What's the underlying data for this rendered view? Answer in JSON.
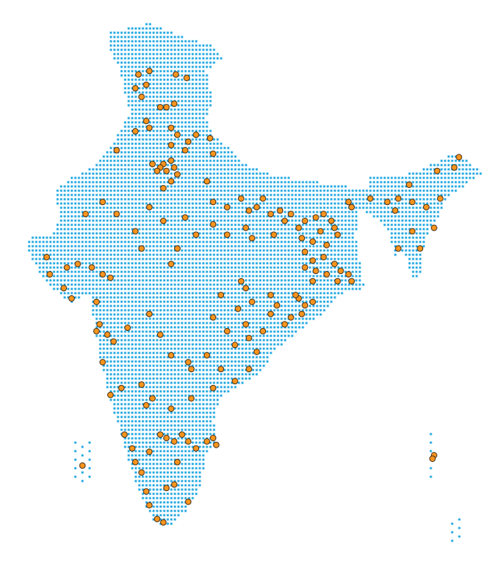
{
  "map": {
    "region": "India",
    "background_dot_color": "#1ea7e1",
    "point_fill_color": "#f7941d",
    "point_stroke_color": "#3a2a1a",
    "points_lonlat": [
      [
        75.4,
        34.1
      ],
      [
        75.9,
        33.5
      ],
      [
        75.2,
        33.3
      ],
      [
        75.6,
        32.8
      ],
      [
        76.1,
        34.3
      ],
      [
        77.8,
        34.1
      ],
      [
        78.5,
        33.9
      ],
      [
        76.8,
        32.2
      ],
      [
        77.2,
        32.2
      ],
      [
        77.7,
        32.4
      ],
      [
        75.9,
        31.4
      ],
      [
        76.1,
        31.0
      ],
      [
        75.2,
        30.8
      ],
      [
        77.5,
        31.0
      ],
      [
        77.9,
        30.6
      ],
      [
        78.6,
        30.2
      ],
      [
        79.1,
        30.6
      ],
      [
        77.5,
        30.0
      ],
      [
        78.4,
        29.7
      ],
      [
        80.0,
        30.4
      ],
      [
        80.2,
        29.5
      ],
      [
        74.0,
        29.7
      ],
      [
        77.0,
        28.9
      ],
      [
        77.5,
        29.1
      ],
      [
        77.2,
        28.5
      ],
      [
        77.7,
        28.7
      ],
      [
        76.8,
        28.7
      ],
      [
        77.5,
        27.9
      ],
      [
        77.9,
        28.3
      ],
      [
        77.0,
        27.5
      ],
      [
        76.6,
        28.5
      ],
      [
        76.3,
        28.9
      ],
      [
        79.8,
        27.9
      ],
      [
        80.2,
        26.7
      ],
      [
        81.1,
        26.4
      ],
      [
        82.0,
        26.9
      ],
      [
        82.5,
        26.2
      ],
      [
        83.0,
        26.4
      ],
      [
        83.9,
        26.0
      ],
      [
        84.5,
        26.2
      ],
      [
        85.2,
        26.0
      ],
      [
        83.4,
        26.9
      ],
      [
        80.2,
        25.4
      ],
      [
        81.1,
        24.8
      ],
      [
        82.3,
        25.2
      ],
      [
        82.7,
        24.6
      ],
      [
        84.1,
        24.8
      ],
      [
        84.8,
        25.6
      ],
      [
        85.7,
        25.2
      ],
      [
        86.1,
        25.6
      ],
      [
        86.8,
        25.8
      ],
      [
        87.3,
        26.0
      ],
      [
        87.8,
        25.6
      ],
      [
        88.0,
        25.2
      ],
      [
        87.1,
        25.0
      ],
      [
        85.9,
        24.6
      ],
      [
        86.6,
        24.4
      ],
      [
        87.5,
        24.2
      ],
      [
        88.2,
        24.8
      ],
      [
        88.9,
        26.7
      ],
      [
        89.1,
        26.4
      ],
      [
        86.1,
        23.8
      ],
      [
        86.6,
        23.3
      ],
      [
        87.3,
        23.5
      ],
      [
        88.0,
        23.1
      ],
      [
        88.4,
        22.7
      ],
      [
        88.9,
        22.5
      ],
      [
        89.1,
        22.1
      ],
      [
        88.2,
        22.1
      ],
      [
        87.5,
        22.5
      ],
      [
        86.8,
        22.7
      ],
      [
        86.1,
        22.9
      ],
      [
        86.6,
        22.1
      ],
      [
        85.7,
        21.1
      ],
      [
        86.1,
        20.7
      ],
      [
        86.6,
        20.9
      ],
      [
        85.9,
        20.2
      ],
      [
        85.2,
        20.0
      ],
      [
        84.8,
        19.6
      ],
      [
        85.5,
        21.3
      ],
      [
        84.3,
        20.7
      ],
      [
        83.9,
        20.2
      ],
      [
        82.3,
        21.7
      ],
      [
        82.7,
        20.9
      ],
      [
        81.8,
        20.5
      ],
      [
        82.3,
        19.6
      ],
      [
        82.5,
        18.8
      ],
      [
        83.0,
        18.0
      ],
      [
        83.4,
        19.2
      ],
      [
        83.9,
        21.3
      ],
      [
        82.0,
        22.1
      ],
      [
        80.7,
        21.3
      ],
      [
        80.2,
        20.0
      ],
      [
        81.1,
        19.2
      ],
      [
        81.6,
        18.4
      ],
      [
        72.0,
        26.0
      ],
      [
        73.1,
        26.7
      ],
      [
        74.0,
        26.0
      ],
      [
        76.1,
        26.4
      ],
      [
        77.0,
        25.6
      ],
      [
        78.4,
        25.8
      ],
      [
        79.1,
        24.8
      ],
      [
        75.2,
        25.0
      ],
      [
        77.9,
        24.0
      ],
      [
        75.6,
        24.0
      ],
      [
        77.5,
        23.1
      ],
      [
        69.5,
        23.5
      ],
      [
        70.8,
        22.9
      ],
      [
        71.5,
        23.1
      ],
      [
        72.4,
        22.9
      ],
      [
        73.1,
        22.5
      ],
      [
        73.6,
        22.3
      ],
      [
        70.6,
        21.7
      ],
      [
        69.7,
        22.5
      ],
      [
        71.1,
        21.1
      ],
      [
        72.7,
        20.9
      ],
      [
        72.9,
        19.6
      ],
      [
        73.4,
        19.0
      ],
      [
        73.8,
        18.6
      ],
      [
        72.7,
        19.2
      ],
      [
        74.7,
        19.4
      ],
      [
        76.1,
        20.2
      ],
      [
        76.8,
        19.0
      ],
      [
        77.5,
        17.8
      ],
      [
        78.6,
        17.4
      ],
      [
        78.8,
        17.0
      ],
      [
        79.8,
        17.8
      ],
      [
        80.7,
        17.0
      ],
      [
        82.5,
        17.0
      ],
      [
        73.1,
        17.4
      ],
      [
        81.6,
        16.3
      ],
      [
        80.2,
        15.9
      ],
      [
        78.8,
        15.3
      ],
      [
        77.5,
        14.7
      ],
      [
        76.3,
        15.3
      ],
      [
        75.9,
        14.9
      ],
      [
        75.6,
        16.1
      ],
      [
        74.3,
        15.9
      ],
      [
        73.6,
        15.5
      ],
      [
        74.5,
        13.2
      ],
      [
        75.0,
        12.4
      ],
      [
        75.2,
        11.6
      ],
      [
        75.6,
        11.0
      ],
      [
        76.1,
        12.2
      ],
      [
        76.8,
        13.2
      ],
      [
        77.2,
        13.0
      ],
      [
        77.7,
        12.8
      ],
      [
        78.2,
        13.2
      ],
      [
        78.6,
        12.8
      ],
      [
        79.1,
        12.4
      ],
      [
        79.8,
        12.8
      ],
      [
        80.2,
        13.0
      ],
      [
        80.4,
        12.6
      ],
      [
        77.9,
        11.6
      ],
      [
        77.7,
        10.3
      ],
      [
        75.9,
        9.9
      ],
      [
        76.1,
        9.1
      ],
      [
        76.6,
        8.3
      ],
      [
        77.0,
        8.1
      ],
      [
        78.6,
        9.3
      ],
      [
        77.2,
        10.1
      ],
      [
        90.3,
        26.9
      ],
      [
        91.4,
        26.7
      ],
      [
        92.1,
        26.9
      ],
      [
        93.0,
        26.7
      ],
      [
        93.9,
        26.4
      ],
      [
        94.8,
        26.9
      ],
      [
        94.6,
        28.5
      ],
      [
        95.7,
        28.7
      ],
      [
        96.0,
        29.3
      ],
      [
        92.8,
        27.7
      ],
      [
        92.1,
        24.0
      ],
      [
        93.5,
        24.0
      ],
      [
        94.4,
        25.2
      ],
      [
        93.0,
        25.0
      ],
      [
        91.9,
        26.2
      ],
      [
        94.4,
        12.0
      ],
      [
        94.3,
        11.8
      ],
      [
        71.8,
        11.4
      ]
    ]
  }
}
